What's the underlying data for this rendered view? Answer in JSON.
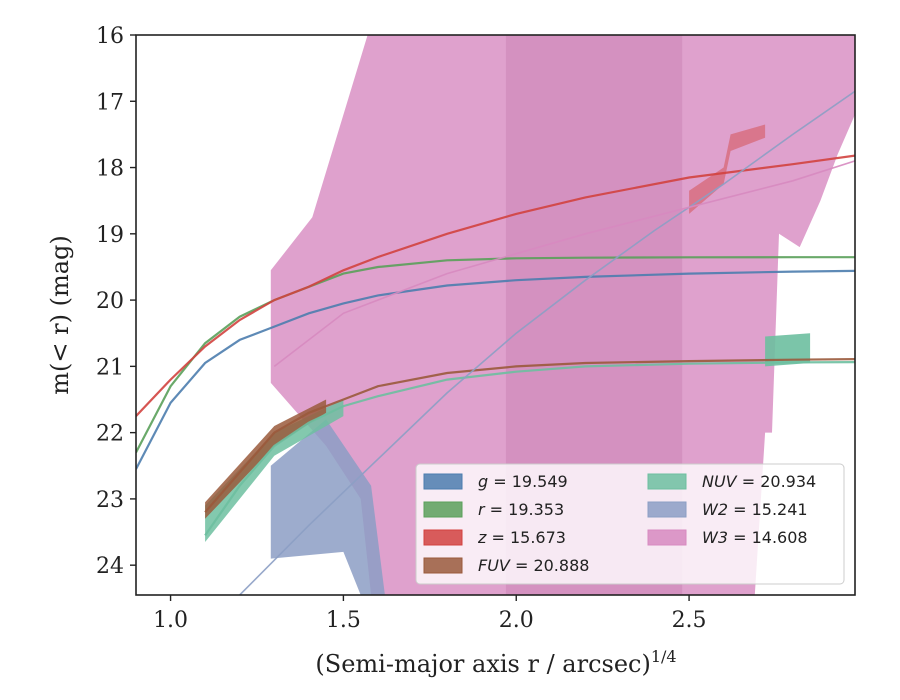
{
  "chart_data": {
    "type": "line",
    "title": "",
    "xlabel": "(Semi-major axis r / arcsec)",
    "xlabel_exponent": "1/4",
    "ylabel": "m(< r) (mag)",
    "xlim": [
      0.9,
      2.98
    ],
    "ylim": [
      24.45,
      16.0
    ],
    "y_inverted": true,
    "grid": false,
    "legend_position": "lower-right",
    "xticks": [
      "1.0",
      "1.5",
      "2.0",
      "2.5"
    ],
    "yticks": [
      "16",
      "17",
      "18",
      "19",
      "20",
      "21",
      "22",
      "23",
      "24"
    ],
    "series": [
      {
        "name": "g",
        "total": "19.549",
        "color": "#4c7dae",
        "x": [
          0.9,
          1.0,
          1.1,
          1.2,
          1.3,
          1.4,
          1.5,
          1.6,
          1.8,
          2.0,
          2.2,
          2.5,
          2.8,
          2.98
        ],
        "y": [
          22.55,
          21.55,
          20.95,
          20.6,
          20.4,
          20.2,
          20.05,
          19.93,
          19.78,
          19.7,
          19.65,
          19.6,
          19.57,
          19.56
        ]
      },
      {
        "name": "r",
        "total": "19.353",
        "color": "#5aa05a",
        "x": [
          0.9,
          1.0,
          1.1,
          1.2,
          1.3,
          1.4,
          1.5,
          1.6,
          1.8,
          2.0,
          2.2,
          2.5,
          2.8,
          2.98
        ],
        "y": [
          22.3,
          21.3,
          20.65,
          20.25,
          20.0,
          19.8,
          19.6,
          19.5,
          19.4,
          19.37,
          19.36,
          19.355,
          19.353,
          19.353
        ]
      },
      {
        "name": "z",
        "total": "15.673",
        "color": "#d2423f",
        "x": [
          0.9,
          1.0,
          1.1,
          1.2,
          1.3,
          1.4,
          1.5,
          1.6,
          1.8,
          2.0,
          2.2,
          2.5,
          2.8,
          2.98
        ],
        "y": [
          21.75,
          21.2,
          20.7,
          20.3,
          20.0,
          19.8,
          19.55,
          19.35,
          19.0,
          18.7,
          18.45,
          18.15,
          17.95,
          17.82
        ]
      },
      {
        "name": "FUV",
        "total": "20.888",
        "color": "#9a5a3c",
        "x": [
          1.1,
          1.2,
          1.3,
          1.4,
          1.5,
          1.6,
          1.8,
          2.0,
          2.2,
          2.5,
          2.8,
          2.98
        ],
        "y": [
          23.2,
          22.6,
          22.0,
          21.7,
          21.5,
          21.3,
          21.1,
          21.0,
          20.95,
          20.92,
          20.9,
          20.89
        ]
      },
      {
        "name": "NUV",
        "total": "20.934",
        "color": "#6dbfa0",
        "x": [
          1.1,
          1.2,
          1.3,
          1.4,
          1.5,
          1.6,
          1.8,
          2.0,
          2.2,
          2.5,
          2.8,
          2.98
        ],
        "y": [
          23.55,
          22.8,
          22.2,
          21.85,
          21.6,
          21.45,
          21.2,
          21.08,
          21.0,
          20.96,
          20.94,
          20.935
        ]
      },
      {
        "name": "W2",
        "total": "15.241",
        "color": "#8c9ec4",
        "x": [
          1.2,
          1.4,
          1.6,
          1.8,
          2.0,
          2.2,
          2.4,
          2.6,
          2.8,
          2.98
        ],
        "y": [
          24.45,
          23.4,
          22.4,
          21.4,
          20.5,
          19.7,
          18.95,
          18.25,
          17.5,
          16.85
        ]
      },
      {
        "name": "W3",
        "total": "14.608",
        "color": "#d78ac0",
        "x": [
          1.3,
          1.5,
          1.8,
          2.0,
          2.2,
          2.5,
          2.8,
          2.98
        ],
        "y": [
          21.0,
          20.2,
          19.6,
          19.3,
          19.0,
          18.6,
          18.2,
          17.9
        ]
      }
    ]
  }
}
